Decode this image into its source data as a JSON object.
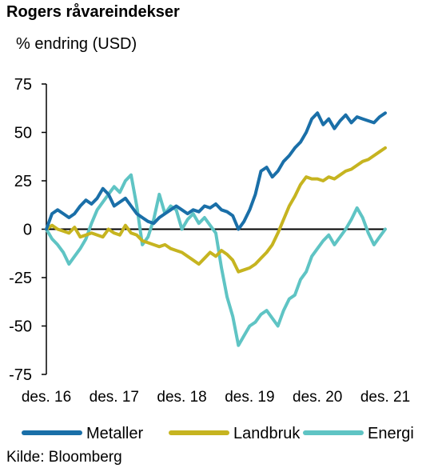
{
  "title": "Rogers råvareindekser",
  "unit_label": "% endring (USD)",
  "source": "Kilde: Bloomberg",
  "chart_data": {
    "type": "line",
    "title": "Rogers råvareindekser",
    "ylabel": "% endring (USD)",
    "xlabel": "",
    "ylim": [
      -75,
      75
    ],
    "yticks": [
      75,
      50,
      25,
      0,
      -25,
      -50,
      -75
    ],
    "xlim": [
      0,
      60
    ],
    "xticks": [
      {
        "x": 0,
        "label": "des. 16"
      },
      {
        "x": 12,
        "label": "des. 17"
      },
      {
        "x": 24,
        "label": "des. 18"
      },
      {
        "x": 36,
        "label": "des. 19"
      },
      {
        "x": 48,
        "label": "des. 20"
      },
      {
        "x": 60,
        "label": "des. 21"
      }
    ],
    "grid": false,
    "legend": "bottom",
    "series": [
      {
        "name": "Metaller",
        "color": "#1a6fa8",
        "points": [
          [
            0,
            0
          ],
          [
            1,
            8
          ],
          [
            2,
            10
          ],
          [
            3,
            8
          ],
          [
            4,
            6
          ],
          [
            5,
            8
          ],
          [
            6,
            12
          ],
          [
            7,
            15
          ],
          [
            8,
            13
          ],
          [
            9,
            16
          ],
          [
            10,
            21
          ],
          [
            11,
            18
          ],
          [
            12,
            12
          ],
          [
            13,
            14
          ],
          [
            14,
            16
          ],
          [
            15,
            12
          ],
          [
            16,
            8
          ],
          [
            17,
            6
          ],
          [
            18,
            4
          ],
          [
            19,
            3
          ],
          [
            20,
            6
          ],
          [
            21,
            8
          ],
          [
            22,
            10
          ],
          [
            23,
            12
          ],
          [
            24,
            10
          ],
          [
            25,
            8
          ],
          [
            26,
            10
          ],
          [
            27,
            9
          ],
          [
            28,
            12
          ],
          [
            29,
            11
          ],
          [
            30,
            13
          ],
          [
            31,
            10
          ],
          [
            32,
            9
          ],
          [
            33,
            7
          ],
          [
            34,
            0
          ],
          [
            35,
            4
          ],
          [
            36,
            10
          ],
          [
            37,
            18
          ],
          [
            38,
            30
          ],
          [
            39,
            32
          ],
          [
            40,
            27
          ],
          [
            41,
            30
          ],
          [
            42,
            35
          ],
          [
            43,
            38
          ],
          [
            44,
            42
          ],
          [
            45,
            45
          ],
          [
            46,
            50
          ],
          [
            47,
            57
          ],
          [
            48,
            60
          ],
          [
            49,
            54
          ],
          [
            50,
            57
          ],
          [
            51,
            52
          ],
          [
            52,
            56
          ],
          [
            53,
            59
          ],
          [
            54,
            55
          ],
          [
            55,
            58
          ],
          [
            56,
            57
          ],
          [
            57,
            56
          ],
          [
            58,
            55
          ],
          [
            59,
            58
          ],
          [
            60,
            60
          ]
        ]
      },
      {
        "name": "Landbruk",
        "color": "#c6b420",
        "points": [
          [
            0,
            0
          ],
          [
            1,
            2
          ],
          [
            2,
            0
          ],
          [
            3,
            -1
          ],
          [
            4,
            -2
          ],
          [
            5,
            1
          ],
          [
            6,
            -4
          ],
          [
            7,
            -3
          ],
          [
            8,
            -2
          ],
          [
            9,
            -3
          ],
          [
            10,
            -4
          ],
          [
            11,
            0
          ],
          [
            12,
            -2
          ],
          [
            13,
            -3
          ],
          [
            14,
            2
          ],
          [
            15,
            -2
          ],
          [
            16,
            -3
          ],
          [
            17,
            -6
          ],
          [
            18,
            -7
          ],
          [
            19,
            -8
          ],
          [
            20,
            -9
          ],
          [
            21,
            -8
          ],
          [
            22,
            -10
          ],
          [
            23,
            -11
          ],
          [
            24,
            -12
          ],
          [
            25,
            -14
          ],
          [
            26,
            -16
          ],
          [
            27,
            -18
          ],
          [
            28,
            -15
          ],
          [
            29,
            -12
          ],
          [
            30,
            -14
          ],
          [
            31,
            -11
          ],
          [
            32,
            -13
          ],
          [
            33,
            -16
          ],
          [
            34,
            -22
          ],
          [
            35,
            -21
          ],
          [
            36,
            -20
          ],
          [
            37,
            -18
          ],
          [
            38,
            -15
          ],
          [
            39,
            -12
          ],
          [
            40,
            -8
          ],
          [
            41,
            -2
          ],
          [
            42,
            5
          ],
          [
            43,
            12
          ],
          [
            44,
            17
          ],
          [
            45,
            23
          ],
          [
            46,
            27
          ],
          [
            47,
            26
          ],
          [
            48,
            26
          ],
          [
            49,
            25
          ],
          [
            50,
            27
          ],
          [
            51,
            26
          ],
          [
            52,
            28
          ],
          [
            53,
            30
          ],
          [
            54,
            31
          ],
          [
            55,
            33
          ],
          [
            56,
            35
          ],
          [
            57,
            36
          ],
          [
            58,
            38
          ],
          [
            59,
            40
          ],
          [
            60,
            42
          ]
        ]
      },
      {
        "name": "Energi",
        "color": "#5fc4c4",
        "points": [
          [
            0,
            0
          ],
          [
            1,
            -5
          ],
          [
            2,
            -8
          ],
          [
            3,
            -12
          ],
          [
            4,
            -18
          ],
          [
            5,
            -14
          ],
          [
            6,
            -10
          ],
          [
            7,
            -5
          ],
          [
            8,
            3
          ],
          [
            9,
            10
          ],
          [
            10,
            14
          ],
          [
            11,
            18
          ],
          [
            12,
            22
          ],
          [
            13,
            19
          ],
          [
            14,
            25
          ],
          [
            15,
            28
          ],
          [
            16,
            12
          ],
          [
            17,
            -8
          ],
          [
            18,
            -4
          ],
          [
            19,
            5
          ],
          [
            20,
            18
          ],
          [
            21,
            8
          ],
          [
            22,
            12
          ],
          [
            23,
            10
          ],
          [
            24,
            0
          ],
          [
            25,
            5
          ],
          [
            26,
            8
          ],
          [
            27,
            3
          ],
          [
            28,
            6
          ],
          [
            29,
            2
          ],
          [
            30,
            -2
          ],
          [
            31,
            -20
          ],
          [
            32,
            -35
          ],
          [
            33,
            -45
          ],
          [
            34,
            -60
          ],
          [
            35,
            -55
          ],
          [
            36,
            -50
          ],
          [
            37,
            -48
          ],
          [
            38,
            -44
          ],
          [
            39,
            -42
          ],
          [
            40,
            -46
          ],
          [
            41,
            -50
          ],
          [
            42,
            -42
          ],
          [
            43,
            -36
          ],
          [
            44,
            -34
          ],
          [
            45,
            -26
          ],
          [
            46,
            -22
          ],
          [
            47,
            -14
          ],
          [
            48,
            -10
          ],
          [
            49,
            -6
          ],
          [
            50,
            -3
          ],
          [
            51,
            -8
          ],
          [
            52,
            -4
          ],
          [
            53,
            0
          ],
          [
            54,
            5
          ],
          [
            55,
            11
          ],
          [
            56,
            6
          ],
          [
            57,
            -2
          ],
          [
            58,
            -8
          ],
          [
            59,
            -4
          ],
          [
            60,
            0
          ]
        ]
      }
    ]
  }
}
